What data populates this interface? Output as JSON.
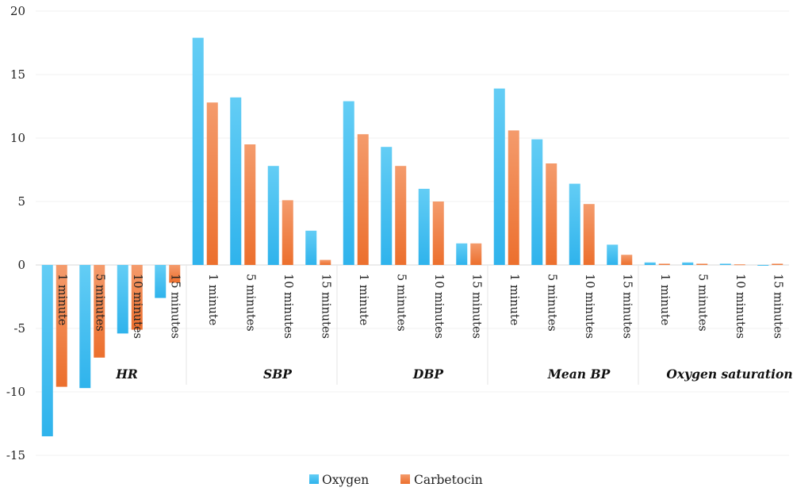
{
  "chart_data": {
    "type": "bar",
    "groups": [
      "HR",
      "SBP",
      "DBP",
      "Mean BP",
      "Oxygen saturation"
    ],
    "categories": [
      "1 minute",
      "5 minutes",
      "10 minutes",
      "15 minutes"
    ],
    "series": [
      {
        "name": "Oxygen",
        "color": "#44bdf0",
        "values": [
          [
            -13.5,
            -9.7,
            -5.4,
            -2.6
          ],
          [
            17.9,
            13.2,
            7.8,
            2.7
          ],
          [
            12.9,
            9.3,
            6.0,
            1.7
          ],
          [
            13.9,
            9.9,
            6.4,
            1.6
          ],
          [
            0.2,
            0.2,
            0.1,
            -0.05
          ]
        ]
      },
      {
        "name": "Carbetocin",
        "color": "#f07f42",
        "values": [
          [
            -9.6,
            -7.3,
            -5.1,
            -1.4
          ],
          [
            12.8,
            9.5,
            5.1,
            0.4
          ],
          [
            10.3,
            7.8,
            5.0,
            1.7
          ],
          [
            10.6,
            8.0,
            4.8,
            0.8
          ],
          [
            0.1,
            0.1,
            0.05,
            0.1
          ]
        ]
      }
    ],
    "ylim": [
      -15,
      20
    ],
    "yticks": [
      -15,
      -10,
      -5,
      0,
      5,
      10,
      15,
      20
    ],
    "grid": true,
    "legend": "bottom-center",
    "title": "",
    "xlabel": "",
    "ylabel": ""
  }
}
